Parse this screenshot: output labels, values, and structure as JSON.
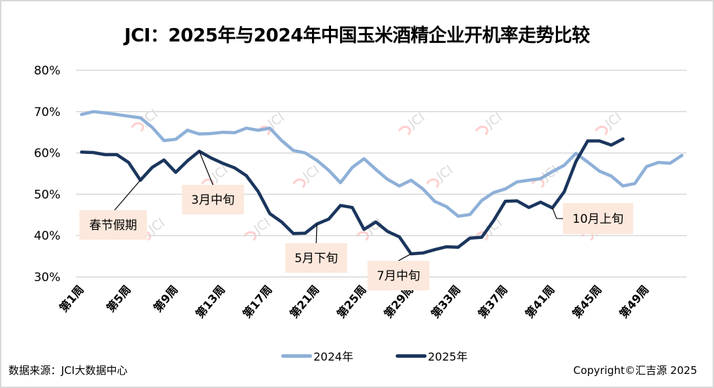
{
  "chart_data": {
    "type": "line",
    "title": "JCI：2025年与2024年中国玉米酒精企业开机率走势比较",
    "xlabel": "",
    "ylabel": "",
    "ylim": [
      30,
      80
    ],
    "yticks": [
      "30%",
      "40%",
      "50%",
      "60%",
      "70%",
      "80%"
    ],
    "ytick_values": [
      30,
      40,
      50,
      60,
      70,
      80
    ],
    "xticks": [
      "第1周",
      "第5周",
      "第9周",
      "第13周",
      "第17周",
      "第21周",
      "第25周",
      "第29周",
      "第33周",
      "第37周",
      "第41周",
      "第45周",
      "第49周"
    ],
    "xtick_weeks": [
      1,
      5,
      9,
      13,
      17,
      21,
      25,
      29,
      33,
      37,
      41,
      45,
      49
    ],
    "x_range_weeks": [
      1,
      52
    ],
    "grid": "horizontal",
    "legend_position": "bottom",
    "series": [
      {
        "name": "2024年",
        "color": "#8eb0d8",
        "weeks_start": 1,
        "values": [
          69.3,
          70.0,
          69.7,
          69.3,
          68.9,
          68.5,
          66.2,
          63.0,
          63.3,
          65.5,
          64.6,
          64.7,
          65.0,
          64.9,
          66.0,
          65.5,
          66.0,
          63.0,
          60.6,
          60.0,
          58.2,
          55.8,
          52.8,
          56.5,
          58.6,
          56.0,
          53.6,
          52.0,
          53.4,
          51.3,
          48.3,
          47.0,
          44.7,
          45.1,
          48.5,
          50.4,
          51.3,
          53.0,
          53.4,
          53.8,
          55.5,
          57.0,
          59.9,
          57.8,
          55.6,
          54.4,
          52.0,
          52.6,
          56.7,
          57.7,
          57.5,
          59.4
        ]
      },
      {
        "name": "2025年",
        "color": "#1b365d",
        "weeks_start": 1,
        "values": [
          60.2,
          60.1,
          59.6,
          59.6,
          57.7,
          53.4,
          56.5,
          58.3,
          55.3,
          58.1,
          60.4,
          58.8,
          57.5,
          56.4,
          54.5,
          50.7,
          45.3,
          43.3,
          40.5,
          40.6,
          42.8,
          44.0,
          47.3,
          46.8,
          41.5,
          43.3,
          41.0,
          39.7,
          35.6,
          35.8,
          36.6,
          37.3,
          37.2,
          39.4,
          39.6,
          43.6,
          48.3,
          48.4,
          46.8,
          48.1,
          46.7,
          50.6,
          57.9,
          62.9,
          62.9,
          61.9,
          63.4
        ]
      }
    ],
    "annotations": [
      {
        "text": "春节假期",
        "week": 6,
        "series": "2025年"
      },
      {
        "text": "3月中旬",
        "week": 11,
        "series": "2025年"
      },
      {
        "text": "5月下旬",
        "week": 21,
        "series": "2025年"
      },
      {
        "text": "7月中旬",
        "week": 29,
        "series": "2025年"
      },
      {
        "text": "10月上旬",
        "week": 41,
        "series": "2025年"
      }
    ],
    "annotation_bg": "#fce8dc",
    "watermark": "JCI"
  },
  "footer": {
    "source": "数据来源：JCI大数据中心",
    "copyright": "Copyright©汇吉源 2025"
  }
}
